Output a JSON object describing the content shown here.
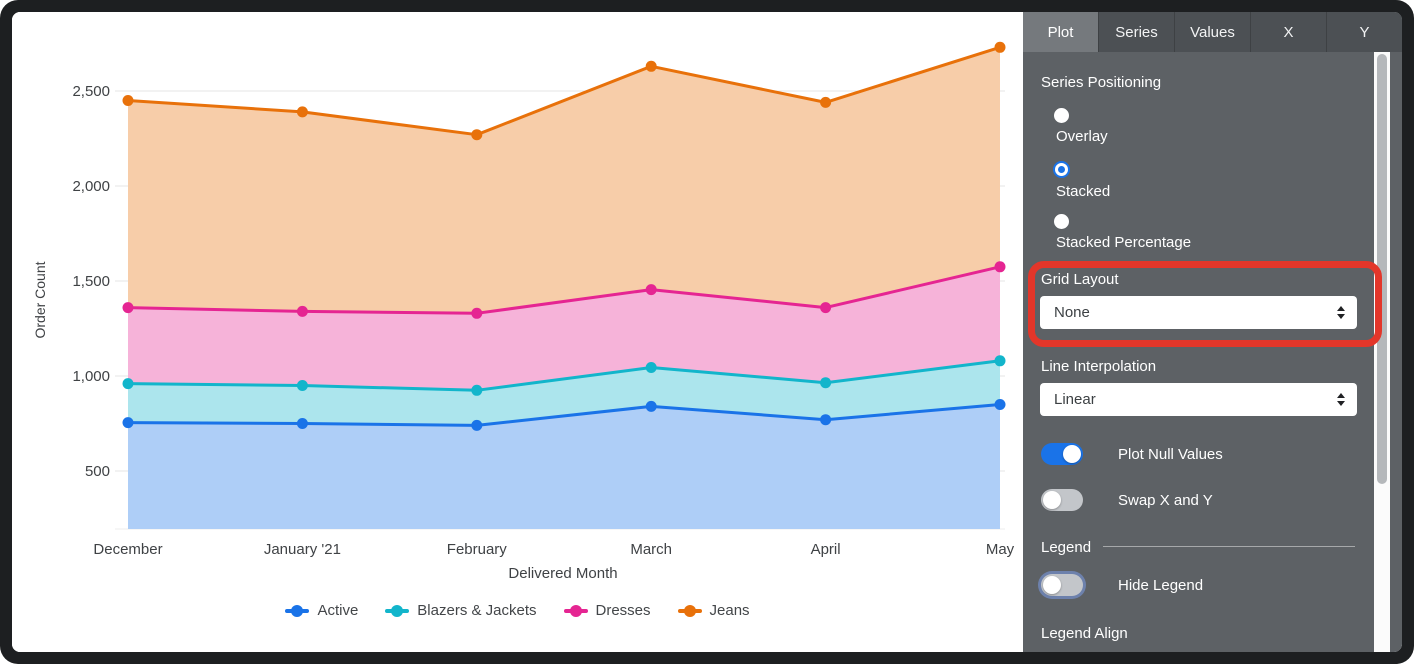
{
  "chart_data": {
    "type": "area",
    "stacked": true,
    "title": "",
    "xlabel": "Delivered Month",
    "ylabel": "Order Count",
    "categories": [
      "December",
      "January '21",
      "February",
      "March",
      "April",
      "May"
    ],
    "series": [
      {
        "name": "Active",
        "color": "#1A73E8",
        "fill": "#AECEF7",
        "values": [
          755,
          750,
          740,
          840,
          770,
          850
        ]
      },
      {
        "name": "Blazers & Jackets",
        "color": "#12B5CB",
        "fill": "#ACE5ED",
        "values": [
          205,
          200,
          185,
          205,
          195,
          230
        ]
      },
      {
        "name": "Dresses",
        "color": "#E52592",
        "fill": "#F6B3D9",
        "values": [
          400,
          390,
          405,
          410,
          395,
          495
        ]
      },
      {
        "name": "Jeans",
        "color": "#E8710A",
        "fill": "#F7CDA9",
        "values": [
          1090,
          1050,
          940,
          1175,
          1080,
          1155
        ]
      }
    ],
    "stacked_totals_note": "cumulative tops: Dec 2450, Jan 2390, Feb 2270, Mar 2630, Apr 2440, May 2730",
    "y_ticks": [
      500,
      1000,
      1500,
      2000,
      2500
    ],
    "ylim": [
      195,
      2800
    ],
    "grid": "horizontal",
    "legend_position": "bottom"
  },
  "panel": {
    "tabs": [
      {
        "label": "Plot",
        "active": true
      },
      {
        "label": "Series",
        "active": false
      },
      {
        "label": "Values",
        "active": false
      },
      {
        "label": "X",
        "active": false
      },
      {
        "label": "Y",
        "active": false
      }
    ],
    "series_positioning": {
      "label": "Series Positioning",
      "options": [
        {
          "label": "Overlay",
          "selected": false
        },
        {
          "label": "Stacked",
          "selected": true
        },
        {
          "label": "Stacked Percentage",
          "selected": false
        }
      ]
    },
    "grid_layout": {
      "label": "Grid Layout",
      "value": "None"
    },
    "line_interpolation": {
      "label": "Line Interpolation",
      "value": "Linear"
    },
    "plot_null_values": {
      "label": "Plot Null Values",
      "on": true
    },
    "swap_x_y": {
      "label": "Swap X and Y",
      "on": false
    },
    "legend_section": {
      "header": "Legend",
      "hide_legend": {
        "label": "Hide Legend",
        "on": false
      },
      "legend_align_label": "Legend Align"
    }
  },
  "annotation": {
    "color": "#E3362A"
  }
}
